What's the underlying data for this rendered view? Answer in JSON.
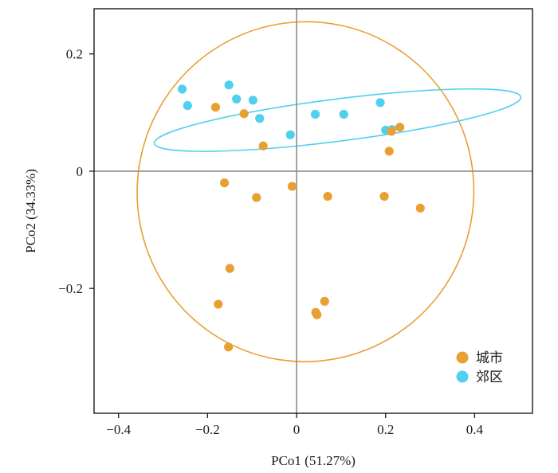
{
  "chart_data": {
    "type": "scatter",
    "xlabel": "PCo1 (51.27%)",
    "ylabel": "PCo2 (34.33%)",
    "xlim": [
      -0.455,
      0.53
    ],
    "ylim": [
      -0.413,
      0.277
    ],
    "x_ticks": [
      {
        "value": -0.4,
        "label": "−0.4"
      },
      {
        "value": -0.2,
        "label": "−0.2"
      },
      {
        "value": 0,
        "label": "0"
      },
      {
        "value": 0.2,
        "label": "0.2"
      },
      {
        "value": 0.4,
        "label": "0.4"
      }
    ],
    "y_ticks": [
      {
        "value": 0.2,
        "label": "0.2"
      },
      {
        "value": 0,
        "label": "0"
      },
      {
        "value": -0.2,
        "label": "−0.2"
      }
    ],
    "reference_lines": {
      "x": 0,
      "y": 0
    },
    "grid": false,
    "legend_position": "bottom-right",
    "series": [
      {
        "name": "城市",
        "color": "#e8a033",
        "ellipse": {
          "cx": 0.02,
          "cy": -0.035,
          "rx": 0.378,
          "ry": 0.29,
          "angle_deg": 12
        },
        "points": [
          [
            -0.182,
            0.109
          ],
          [
            -0.118,
            0.098
          ],
          [
            -0.075,
            0.043
          ],
          [
            0.213,
            0.068
          ],
          [
            0.232,
            0.075
          ],
          [
            0.208,
            0.034
          ],
          [
            -0.162,
            -0.02
          ],
          [
            -0.09,
            -0.045
          ],
          [
            -0.01,
            -0.026
          ],
          [
            0.07,
            -0.043
          ],
          [
            0.197,
            -0.043
          ],
          [
            0.278,
            -0.063
          ],
          [
            -0.15,
            -0.166
          ],
          [
            -0.176,
            -0.227
          ],
          [
            0.063,
            -0.222
          ],
          [
            0.043,
            -0.241
          ],
          [
            0.046,
            -0.245
          ],
          [
            -0.153,
            -0.3
          ]
        ]
      },
      {
        "name": "郊区",
        "color": "#4fd0ee",
        "ellipse": {
          "cx": 0.092,
          "cy": 0.087,
          "rx": 0.415,
          "ry": 0.036,
          "angle_deg": -7.2
        },
        "points": [
          [
            -0.257,
            0.14
          ],
          [
            -0.245,
            0.112
          ],
          [
            -0.152,
            0.147
          ],
          [
            -0.135,
            0.123
          ],
          [
            -0.098,
            0.121
          ],
          [
            -0.083,
            0.09
          ],
          [
            -0.014,
            0.062
          ],
          [
            0.042,
            0.097
          ],
          [
            0.106,
            0.097
          ],
          [
            0.188,
            0.117
          ],
          [
            0.2,
            0.07
          ],
          [
            0.214,
            0.071
          ]
        ]
      }
    ]
  }
}
